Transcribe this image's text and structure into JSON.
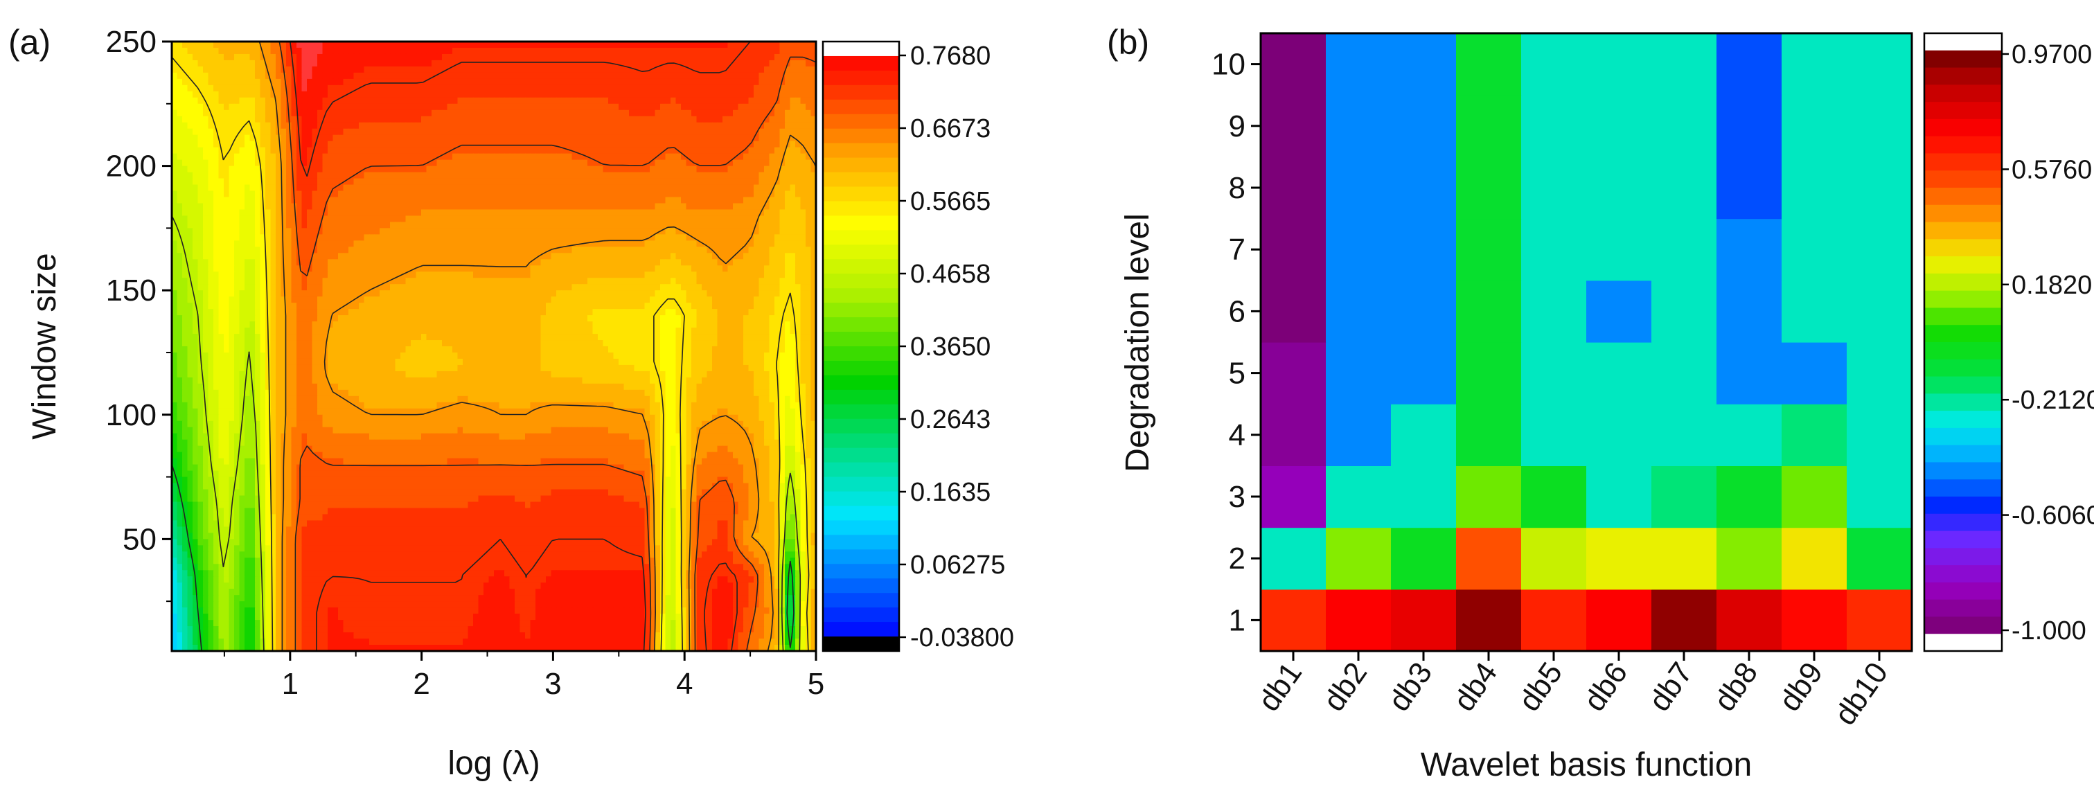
{
  "chart_data": [
    {
      "panel": "(a)",
      "type": "heatmap",
      "subtype": "filled-contour",
      "xlabel": "log (λ)",
      "ylabel": "Window size",
      "xlim": [
        0.1,
        5
      ],
      "ylim": [
        5,
        250
      ],
      "xticks": [
        "1",
        "2",
        "3",
        "4",
        "5"
      ],
      "yticks": [
        "50",
        "100",
        "150",
        "200",
        "250"
      ],
      "colorbar": {
        "min": -0.038,
        "max": 0.768,
        "labels": [
          "0.7680",
          "0.6673",
          "0.5665",
          "0.4658",
          "0.3650",
          "0.2643",
          "0.1635",
          "0.06275",
          "-0.03800"
        ]
      },
      "grid_x": [
        0.1,
        0.3,
        0.5,
        0.7,
        0.9,
        1.1,
        1.3,
        1.6,
        2.0,
        2.3,
        2.6,
        2.8,
        3.0,
        3.4,
        3.7,
        3.9,
        4.1,
        4.3,
        4.5,
        4.7,
        4.8,
        4.9,
        5.0
      ],
      "grid_y": [
        5,
        20,
        35,
        50,
        65,
        80,
        100,
        120,
        140,
        160,
        180,
        200,
        225,
        250
      ],
      "z": [
        [
          0.1,
          0.28,
          0.43,
          0.3,
          0.6,
          0.7,
          0.72,
          0.72,
          0.72,
          0.72,
          0.73,
          0.72,
          0.73,
          0.73,
          0.72,
          0.44,
          0.7,
          0.73,
          0.66,
          0.6,
          0.3,
          0.5,
          0.62
        ],
        [
          0.12,
          0.3,
          0.44,
          0.32,
          0.6,
          0.7,
          0.72,
          0.71,
          0.71,
          0.71,
          0.73,
          0.71,
          0.74,
          0.74,
          0.73,
          0.45,
          0.7,
          0.74,
          0.68,
          0.62,
          0.2,
          0.52,
          0.62
        ],
        [
          0.14,
          0.32,
          0.45,
          0.34,
          0.6,
          0.7,
          0.71,
          0.71,
          0.71,
          0.71,
          0.72,
          0.71,
          0.72,
          0.72,
          0.72,
          0.46,
          0.7,
          0.72,
          0.7,
          0.6,
          0.25,
          0.5,
          0.61
        ],
        [
          0.2,
          0.36,
          0.47,
          0.36,
          0.6,
          0.7,
          0.7,
          0.7,
          0.7,
          0.7,
          0.71,
          0.7,
          0.71,
          0.71,
          0.7,
          0.47,
          0.68,
          0.7,
          0.62,
          0.6,
          0.35,
          0.52,
          0.61
        ],
        [
          0.25,
          0.38,
          0.48,
          0.38,
          0.6,
          0.68,
          0.69,
          0.69,
          0.69,
          0.69,
          0.7,
          0.69,
          0.7,
          0.7,
          0.69,
          0.48,
          0.67,
          0.69,
          0.64,
          0.58,
          0.4,
          0.53,
          0.6
        ],
        [
          0.3,
          0.4,
          0.5,
          0.4,
          0.6,
          0.68,
          0.67,
          0.67,
          0.67,
          0.67,
          0.67,
          0.67,
          0.67,
          0.67,
          0.66,
          0.5,
          0.64,
          0.66,
          0.63,
          0.58,
          0.46,
          0.54,
          0.6
        ],
        [
          0.35,
          0.42,
          0.52,
          0.42,
          0.6,
          0.66,
          0.63,
          0.62,
          0.62,
          0.63,
          0.62,
          0.62,
          0.63,
          0.63,
          0.62,
          0.52,
          0.61,
          0.62,
          0.61,
          0.56,
          0.5,
          0.56,
          0.6
        ],
        [
          0.38,
          0.44,
          0.52,
          0.44,
          0.6,
          0.66,
          0.61,
          0.6,
          0.58,
          0.59,
          0.6,
          0.6,
          0.58,
          0.57,
          0.56,
          0.53,
          0.58,
          0.6,
          0.59,
          0.55,
          0.52,
          0.57,
          0.6
        ],
        [
          0.4,
          0.45,
          0.53,
          0.46,
          0.6,
          0.66,
          0.62,
          0.61,
          0.6,
          0.6,
          0.61,
          0.61,
          0.58,
          0.56,
          0.56,
          0.53,
          0.57,
          0.6,
          0.59,
          0.56,
          0.54,
          0.57,
          0.6
        ],
        [
          0.42,
          0.47,
          0.54,
          0.48,
          0.6,
          0.68,
          0.64,
          0.63,
          0.62,
          0.62,
          0.62,
          0.62,
          0.61,
          0.6,
          0.6,
          0.58,
          0.6,
          0.62,
          0.61,
          0.58,
          0.56,
          0.58,
          0.6
        ],
        [
          0.45,
          0.48,
          0.54,
          0.5,
          0.6,
          0.7,
          0.66,
          0.65,
          0.64,
          0.64,
          0.64,
          0.64,
          0.64,
          0.64,
          0.64,
          0.63,
          0.64,
          0.64,
          0.63,
          0.6,
          0.57,
          0.59,
          0.61
        ],
        [
          0.48,
          0.5,
          0.55,
          0.52,
          0.6,
          0.72,
          0.68,
          0.67,
          0.67,
          0.66,
          0.66,
          0.66,
          0.66,
          0.67,
          0.67,
          0.66,
          0.67,
          0.67,
          0.66,
          0.63,
          0.6,
          0.61,
          0.62
        ],
        [
          0.52,
          0.54,
          0.57,
          0.56,
          0.62,
          0.74,
          0.71,
          0.7,
          0.7,
          0.69,
          0.69,
          0.69,
          0.69,
          0.69,
          0.7,
          0.69,
          0.7,
          0.7,
          0.69,
          0.67,
          0.64,
          0.64,
          0.65
        ],
        [
          0.56,
          0.58,
          0.6,
          0.6,
          0.66,
          0.76,
          0.74,
          0.73,
          0.73,
          0.72,
          0.72,
          0.72,
          0.72,
          0.72,
          0.72,
          0.72,
          0.72,
          0.72,
          0.71,
          0.7,
          0.68,
          0.68,
          0.68
        ]
      ]
    },
    {
      "panel": "(b)",
      "type": "heatmap",
      "xlabel": "Wavelet basis function",
      "ylabel": "Degradation level",
      "categories": [
        "db1",
        "db2",
        "db3",
        "db4",
        "db5",
        "db6",
        "db7",
        "db8",
        "db9",
        "db10"
      ],
      "levels": [
        "1",
        "2",
        "3",
        "4",
        "5",
        "6",
        "7",
        "8",
        "9",
        "10"
      ],
      "colorbar": {
        "min": -1.0,
        "max": 0.97,
        "labels": [
          "0.9700",
          "0.5760",
          "0.1820",
          "-0.2120",
          "-0.6060",
          "-1.000"
        ]
      },
      "values": [
        [
          0.6,
          0.7,
          0.75,
          0.92,
          0.62,
          0.7,
          0.92,
          0.78,
          0.68,
          0.6
        ],
        [
          -0.25,
          0.12,
          -0.05,
          0.52,
          0.2,
          0.25,
          0.25,
          0.12,
          0.28,
          -0.1
        ],
        [
          -0.85,
          -0.25,
          -0.25,
          0.1,
          -0.05,
          -0.25,
          -0.18,
          -0.07,
          0.1,
          -0.25
        ],
        [
          -0.92,
          -0.45,
          -0.25,
          -0.08,
          -0.25,
          -0.25,
          -0.25,
          -0.25,
          -0.18,
          -0.25
        ],
        [
          -0.92,
          -0.45,
          -0.45,
          -0.08,
          -0.25,
          -0.25,
          -0.25,
          -0.45,
          -0.45,
          -0.25
        ],
        [
          -0.98,
          -0.45,
          -0.45,
          -0.08,
          -0.25,
          -0.45,
          -0.25,
          -0.45,
          -0.25,
          -0.25
        ],
        [
          -0.98,
          -0.45,
          -0.45,
          -0.08,
          -0.25,
          -0.25,
          -0.25,
          -0.45,
          -0.25,
          -0.25
        ],
        [
          -0.98,
          -0.45,
          -0.45,
          -0.08,
          -0.25,
          -0.25,
          -0.25,
          -0.52,
          -0.25,
          -0.25
        ],
        [
          -0.98,
          -0.45,
          -0.45,
          -0.08,
          -0.25,
          -0.25,
          -0.25,
          -0.52,
          -0.25,
          -0.25
        ],
        [
          -0.98,
          -0.45,
          -0.45,
          -0.08,
          -0.25,
          -0.25,
          -0.25,
          -0.52,
          -0.25,
          -0.25
        ]
      ]
    }
  ]
}
